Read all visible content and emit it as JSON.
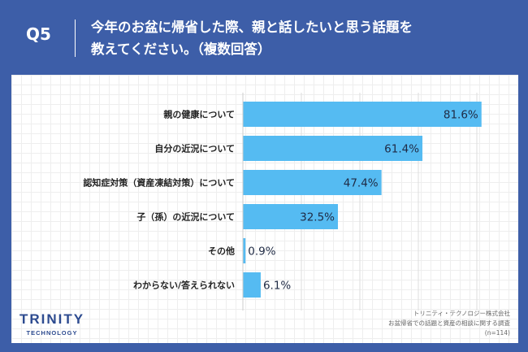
{
  "header": {
    "question_number": "Q5",
    "question_line1": "今年のお盆に帰省した際、親と話したいと思う話題を",
    "question_line2": "教えてください。（複数回答）"
  },
  "footer": {
    "logo_main": "TRINITY",
    "logo_sub": "TECHNOLOGY",
    "source_line1": "トリニティ・テクノロジー株式会社",
    "source_line2": "お盆帰省での話題と資産の相談に関する調査",
    "source_line3": "(n=114)"
  },
  "colors": {
    "bar": "#55bbf2",
    "header_bg": "#3d5ea8",
    "logo": "#2c4a8f"
  },
  "chart_data": {
    "type": "bar",
    "orientation": "horizontal",
    "categories": [
      "親の健康について",
      "自分の近況について",
      "認知症対策（資産凍結対策）について",
      "子（孫）の近況について",
      "その他",
      "わからない/答えられない"
    ],
    "values": [
      81.6,
      61.4,
      47.4,
      32.5,
      0.9,
      6.1
    ],
    "value_labels": [
      "81.6%",
      "61.4%",
      "47.4%",
      "32.5%",
      "0.9%",
      "6.1%"
    ],
    "xlim": [
      0,
      100
    ],
    "grid": true
  }
}
